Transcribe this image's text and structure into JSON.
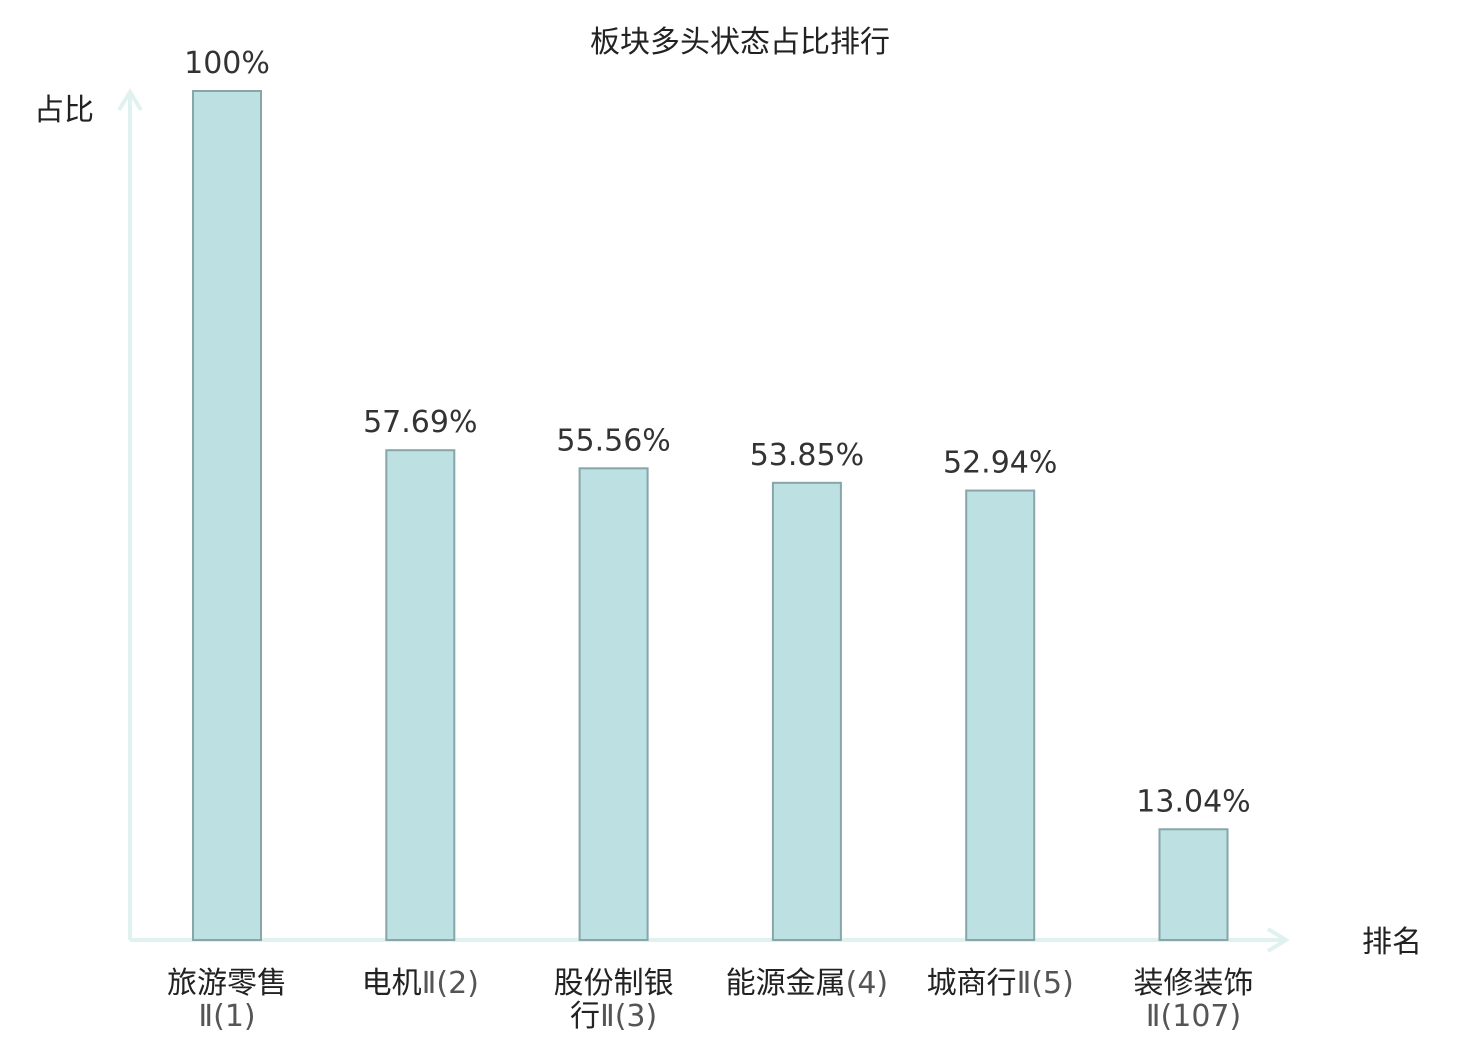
{
  "chart_data": {
    "type": "bar",
    "title": "板块多头状态占比排行",
    "xlabel": "排名",
    "ylabel": "占比",
    "ylim": [
      0,
      100
    ],
    "grid": false,
    "categories": [
      {
        "name": "旅游零售",
        "suffix": "Ⅱ(1)",
        "lines": [
          {
            "main": "旅游零售",
            "suffix": ""
          },
          {
            "main": "",
            "suffix": "Ⅱ(1)"
          }
        ],
        "highlight": false
      },
      {
        "name": "电机",
        "suffix": "Ⅱ(2)",
        "lines": [
          {
            "main": "电机",
            "suffix": "Ⅱ(2)"
          }
        ],
        "highlight": false
      },
      {
        "name": "股份制银行",
        "suffix": "Ⅱ(3)",
        "lines": [
          {
            "main": "股份制银",
            "suffix": ""
          },
          {
            "main": "行",
            "suffix": "Ⅱ(3)"
          }
        ],
        "highlight": false
      },
      {
        "name": "能源金属",
        "suffix": "(4)",
        "lines": [
          {
            "main": "能源金属",
            "suffix": "(4)"
          }
        ],
        "highlight": false
      },
      {
        "name": "城商行",
        "suffix": "Ⅱ(5)",
        "lines": [
          {
            "main": "城商行",
            "suffix": "Ⅱ(5)"
          }
        ],
        "highlight": false
      },
      {
        "name": "装修装饰",
        "suffix": "Ⅱ(107)",
        "lines": [
          {
            "main": "装修装饰",
            "suffix": ""
          },
          {
            "main": "",
            "suffix": "Ⅱ(107)"
          }
        ],
        "highlight": true
      }
    ],
    "values": [
      100,
      57.69,
      55.56,
      53.85,
      52.94,
      13.04
    ],
    "value_labels": [
      "100%",
      "57.69%",
      "55.56%",
      "53.85%",
      "52.94%",
      "13.04%"
    ],
    "colors": {
      "bar_fill": "#bde0e3",
      "bar_stroke": "#86a6aa",
      "axis": "#e0f2f0",
      "highlight_text": "#e0141e",
      "text": "#222222"
    }
  }
}
